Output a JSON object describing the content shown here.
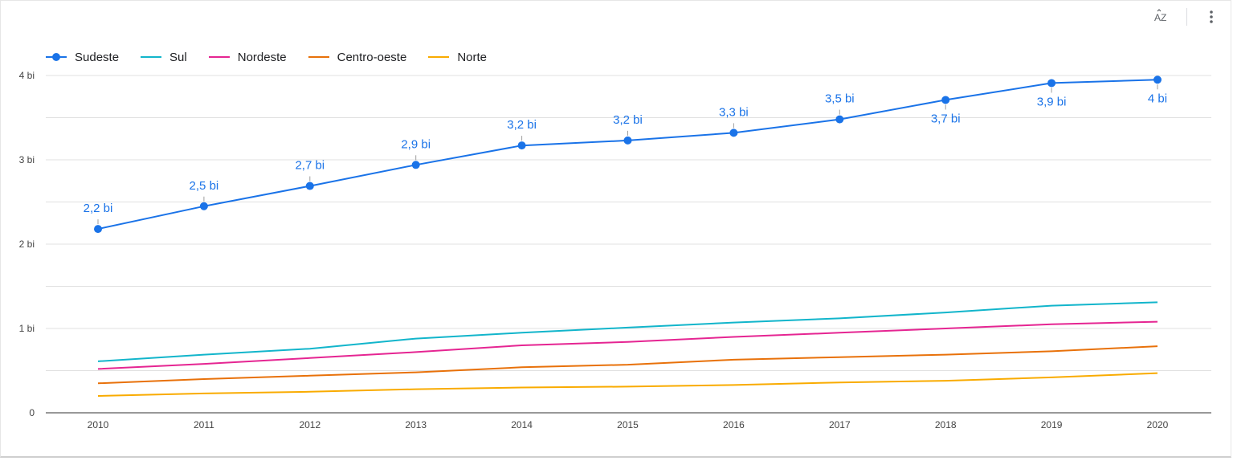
{
  "toolbar": {
    "sort_icon": "sort-az-icon",
    "sort_label": "AZ",
    "menu_icon": "more-vert-icon"
  },
  "chart_data": {
    "type": "line",
    "x": [
      "2010",
      "2011",
      "2012",
      "2013",
      "2014",
      "2015",
      "2016",
      "2017",
      "2018",
      "2019",
      "2020"
    ],
    "ylim": [
      0,
      4.4
    ],
    "yticks": [
      {
        "value": 0,
        "label": "0"
      },
      {
        "value": 1,
        "label": "1 bi"
      },
      {
        "value": 2,
        "label": "2 bi"
      },
      {
        "value": 3,
        "label": "3 bi"
      },
      {
        "value": 4,
        "label": "4 bi"
      }
    ],
    "grid": true,
    "legend_position": "top-left",
    "series": [
      {
        "name": "Sudeste",
        "color": "#1a73e8",
        "markers": true,
        "values": [
          2.18,
          2.45,
          2.69,
          2.94,
          3.17,
          3.23,
          3.32,
          3.48,
          3.71,
          3.91,
          3.95
        ],
        "labels": [
          "2,2 bi",
          "2,5 bi",
          "2,7 bi",
          "2,9 bi",
          "3,2 bi",
          "3,2 bi",
          "3,3 bi",
          "3,5 bi",
          "3,7 bi",
          "3,9 bi",
          "4 bi"
        ],
        "label_pos": [
          "above",
          "above",
          "above",
          "above",
          "above",
          "above",
          "above",
          "above",
          "below",
          "below",
          "below"
        ]
      },
      {
        "name": "Sul",
        "color": "#12b5cb",
        "markers": false,
        "values": [
          0.61,
          0.69,
          0.76,
          0.88,
          0.95,
          1.01,
          1.07,
          1.12,
          1.19,
          1.27,
          1.31
        ]
      },
      {
        "name": "Nordeste",
        "color": "#e52592",
        "markers": false,
        "values": [
          0.52,
          0.58,
          0.65,
          0.72,
          0.8,
          0.84,
          0.9,
          0.95,
          1.0,
          1.05,
          1.08
        ]
      },
      {
        "name": "Centro-oeste",
        "color": "#e8710a",
        "markers": false,
        "values": [
          0.35,
          0.4,
          0.44,
          0.48,
          0.54,
          0.57,
          0.63,
          0.66,
          0.69,
          0.73,
          0.79
        ]
      },
      {
        "name": "Norte",
        "color": "#f9ab00",
        "markers": false,
        "values": [
          0.2,
          0.23,
          0.25,
          0.28,
          0.3,
          0.31,
          0.33,
          0.36,
          0.38,
          0.42,
          0.47
        ]
      }
    ]
  }
}
